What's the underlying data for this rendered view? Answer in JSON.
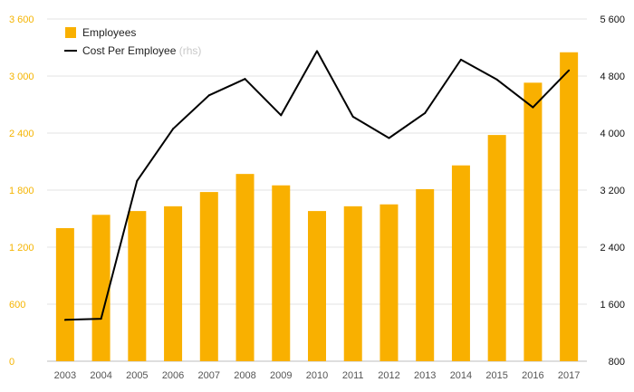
{
  "chart_data": {
    "type": "bar",
    "categories": [
      "2003",
      "2004",
      "2005",
      "2006",
      "2007",
      "2008",
      "2009",
      "2010",
      "2011",
      "2012",
      "2013",
      "2014",
      "2015",
      "2016",
      "2017"
    ],
    "series": [
      {
        "name": "Employees",
        "type": "bar",
        "axis": "left",
        "color": "#f9b000",
        "values": [
          1400,
          1540,
          1580,
          1630,
          1780,
          1970,
          1850,
          1580,
          1630,
          1650,
          1810,
          2060,
          2380,
          2930,
          3250
        ]
      },
      {
        "name": "Cost Per Employee",
        "name_suffix": "(rhs)",
        "type": "line",
        "axis": "right",
        "color": "#000000",
        "values": [
          1380,
          1395,
          3330,
          4060,
          4530,
          4760,
          4250,
          5150,
          4230,
          3930,
          4280,
          5030,
          4750,
          4360,
          4880
        ]
      }
    ],
    "y_left": {
      "ylim": [
        0,
        3600
      ],
      "ticks": [
        0,
        600,
        1200,
        1800,
        2400,
        3000,
        3600
      ],
      "tick_labels": [
        "0",
        "600",
        "1 200",
        "1 800",
        "2 400",
        "3 000",
        "3 600"
      ]
    },
    "y_right": {
      "ylim": [
        800,
        5600
      ],
      "ticks": [
        800,
        1600,
        2400,
        3200,
        4000,
        4800,
        5600
      ],
      "tick_labels": [
        "800",
        "1 600",
        "2 400",
        "3 200",
        "4 000",
        "4 800",
        "5 600"
      ]
    },
    "grid": "horizontal",
    "legend_position": "top-left",
    "title": "",
    "xlabel": "",
    "ylabel": ""
  }
}
